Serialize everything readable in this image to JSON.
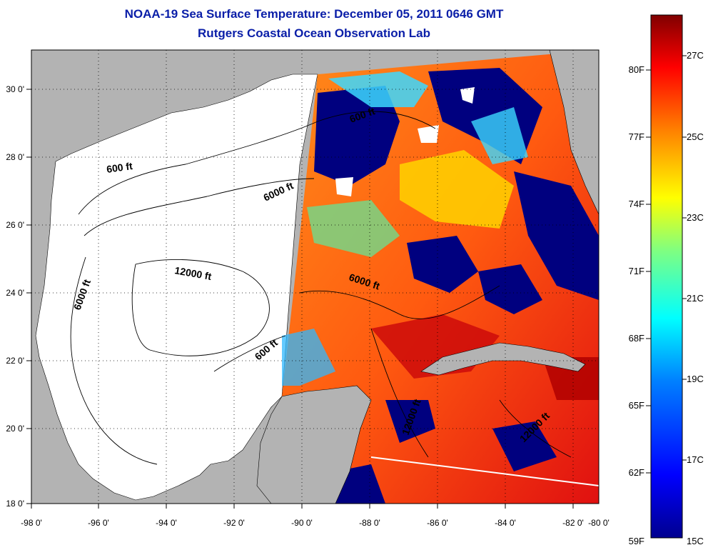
{
  "header": {
    "title": "NOAA-19 Sea Surface Temperature:  December 05, 2011 0646 GMT",
    "subtitle": "Rutgers Coastal Ocean Observation Lab"
  },
  "map": {
    "lon_ticks": [
      "-98 0'",
      "-96 0'",
      "-94 0'",
      "-92 0'",
      "-90 0'",
      "-88 0'",
      "-86 0'",
      "-84 0'",
      "-82 0'",
      "-80 0'"
    ],
    "lat_ticks": [
      "30 0'",
      "28 0'",
      "26 0'",
      "24 0'",
      "22 0'",
      "20 0'",
      "18 0'"
    ],
    "contour_labels": [
      "600 ft",
      "6000 ft",
      "12000 ft",
      "6000 ft",
      "600 ft",
      "600 ft",
      "6000 ft",
      "12000 ft",
      "12000 ft"
    ],
    "colors": {
      "land": "#b3b3b3",
      "ocean_nodata": "#ffffff",
      "cloud": "#00007f"
    }
  },
  "colorbar": {
    "fahrenheit_labels": [
      "80F",
      "77F",
      "74F",
      "71F",
      "68F",
      "65F",
      "62F",
      "59F"
    ],
    "celsius_labels": [
      "27C",
      "25C",
      "23C",
      "21C",
      "19C",
      "17C",
      "15C"
    ],
    "palette": [
      "#800000",
      "#ff0000",
      "#ff8000",
      "#ffff00",
      "#80ff80",
      "#00ffff",
      "#0080ff",
      "#0000ff",
      "#00008f"
    ]
  }
}
